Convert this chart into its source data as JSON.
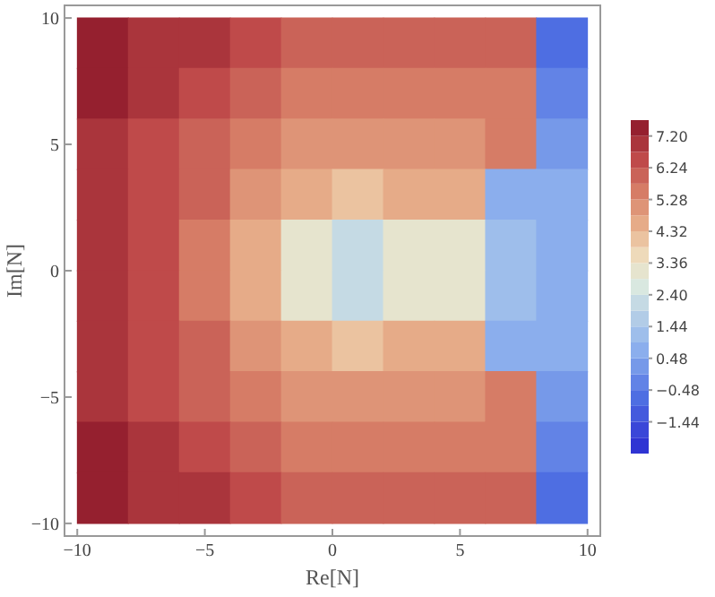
{
  "chart_data": {
    "type": "scatter",
    "xlabel": "Re[N]",
    "ylabel": "Im[N]",
    "marker": "square",
    "xlim": [
      -10.5,
      10.5
    ],
    "ylim": [
      -10.5,
      10.5
    ],
    "xticks": [
      -10,
      -5,
      0,
      5,
      10
    ],
    "yticks": [
      -10,
      -5,
      0,
      5,
      10
    ],
    "x": [
      -9,
      -7,
      -5,
      -3,
      -1,
      1,
      3,
      5,
      7,
      9,
      -9,
      -7,
      -5,
      -3,
      -1,
      1,
      3,
      5,
      7,
      9,
      -9,
      -7,
      -5,
      -3,
      -1,
      1,
      3,
      5,
      7,
      9,
      -9,
      -7,
      -5,
      -3,
      -1,
      1,
      3,
      5,
      7,
      9,
      -9,
      -7,
      -5,
      -3,
      -1,
      1,
      3,
      5,
      7,
      9,
      -9,
      -7,
      -5,
      -3,
      -1,
      1,
      3,
      5,
      7,
      9,
      -9,
      -7,
      -5,
      -3,
      -1,
      1,
      3,
      5,
      7,
      9,
      -9,
      -7,
      -5,
      -3,
      -1,
      1,
      3,
      5,
      7,
      9,
      -9,
      -7,
      -5,
      -3,
      -1,
      1,
      3,
      5,
      7,
      9,
      -9,
      -7,
      -5,
      -3,
      -1,
      1,
      3,
      5,
      7,
      9
    ],
    "values": [
      9,
      9,
      9,
      9,
      9,
      9,
      9,
      9,
      9,
      9,
      7,
      7,
      7,
      7,
      7,
      7,
      7,
      7,
      7,
      7,
      5,
      5,
      5,
      5,
      5,
      5,
      5,
      5,
      5,
      5,
      3,
      3,
      3,
      3,
      3,
      3,
      3,
      3,
      3,
      3,
      1,
      1,
      1,
      1,
      1,
      1,
      1,
      1,
      1,
      1,
      -1,
      -1,
      -1,
      -1,
      -1,
      -1,
      -1,
      -1,
      -1,
      -1,
      -3,
      -3,
      -3,
      -3,
      -3,
      -3,
      -3,
      -3,
      -3,
      -3,
      -5,
      -5,
      -5,
      -5,
      -5,
      -5,
      -5,
      -5,
      -5,
      -5,
      -7,
      -7,
      -7,
      -7,
      -7,
      -7,
      -7,
      -7,
      -7,
      -7,
      -9,
      -9,
      -9,
      -9,
      -9,
      -9,
      -9,
      -9,
      -9,
      -9
    ],
    "cvalues": [
      7.43,
      7.08,
      6.73,
      6.42,
      6.16,
      5.98,
      5.88,
      5.85,
      5.86,
      -0.86,
      7.25,
      6.84,
      6.44,
      6.06,
      5.74,
      5.55,
      5.48,
      5.52,
      5.6,
      -0.36,
      7.08,
      6.62,
      6.12,
      5.62,
      5.19,
      4.96,
      4.99,
      5.15,
      5.34,
      0.11,
      6.95,
      6.43,
      5.83,
      5.14,
      4.42,
      4.09,
      4.37,
      4.77,
      0.89,
      0.5,
      6.88,
      6.32,
      5.63,
      4.72,
      3.34,
      2.36,
      3.2,
      2.9,
      1.27,
      0.75,
      6.88,
      6.32,
      5.63,
      4.72,
      3.34,
      2.36,
      3.2,
      2.9,
      1.27,
      0.75,
      6.95,
      6.43,
      5.83,
      5.14,
      4.42,
      4.09,
      4.37,
      4.77,
      0.89,
      0.5,
      7.08,
      6.62,
      6.12,
      5.62,
      5.19,
      4.96,
      4.99,
      5.15,
      5.34,
      0.11,
      7.25,
      6.84,
      6.44,
      6.06,
      5.74,
      5.55,
      5.48,
      5.52,
      5.6,
      -0.36,
      7.43,
      7.08,
      6.73,
      6.42,
      6.16,
      5.98,
      5.88,
      5.85,
      5.86,
      -0.86
    ],
    "clim": [
      -2.4,
      7.68
    ],
    "cticks": [
      {
        "value": -1.44,
        "label": "−1.44"
      },
      {
        "value": -0.48,
        "label": "−0.48"
      },
      {
        "value": 0.48,
        "label": "0.48"
      },
      {
        "value": 1.44,
        "label": "1.44"
      },
      {
        "value": 2.4,
        "label": "2.40"
      },
      {
        "value": 3.36,
        "label": "3.36"
      },
      {
        "value": 4.32,
        "label": "4.32"
      },
      {
        "value": 5.28,
        "label": "5.28"
      },
      {
        "value": 6.24,
        "label": "6.24"
      },
      {
        "value": 7.2,
        "label": "7.20"
      }
    ]
  }
}
